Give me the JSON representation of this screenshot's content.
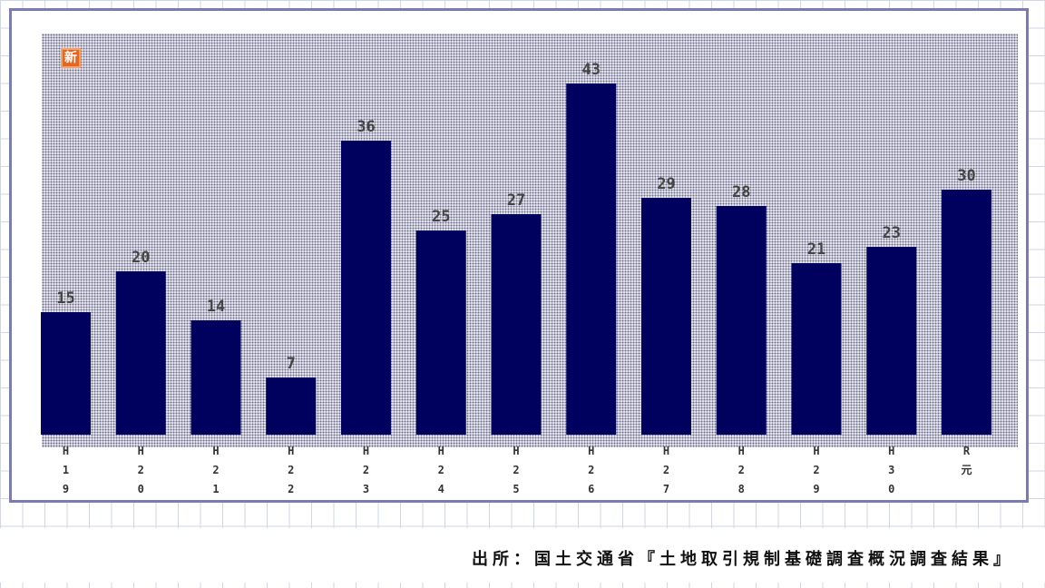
{
  "badge": "新",
  "source": "出所：国土交通省『土地取引規制基礎調査概況調査結果』",
  "colors": {
    "bar": "#00005f",
    "frame": "#7a7ab4",
    "badge": "#e8651e"
  },
  "chart_data": {
    "type": "bar",
    "title": "",
    "xlabel": "",
    "ylabel": "",
    "categories": [
      "H19",
      "H20",
      "H21",
      "H22",
      "H23",
      "H24",
      "H25",
      "H26",
      "H27",
      "H28",
      "H29",
      "H30",
      "R元"
    ],
    "values": [
      15,
      20,
      14,
      7,
      36,
      25,
      27,
      43,
      29,
      28,
      21,
      23,
      30
    ],
    "ylim": [
      0,
      45
    ],
    "grid": false,
    "legend": "none",
    "data_labels": true
  }
}
